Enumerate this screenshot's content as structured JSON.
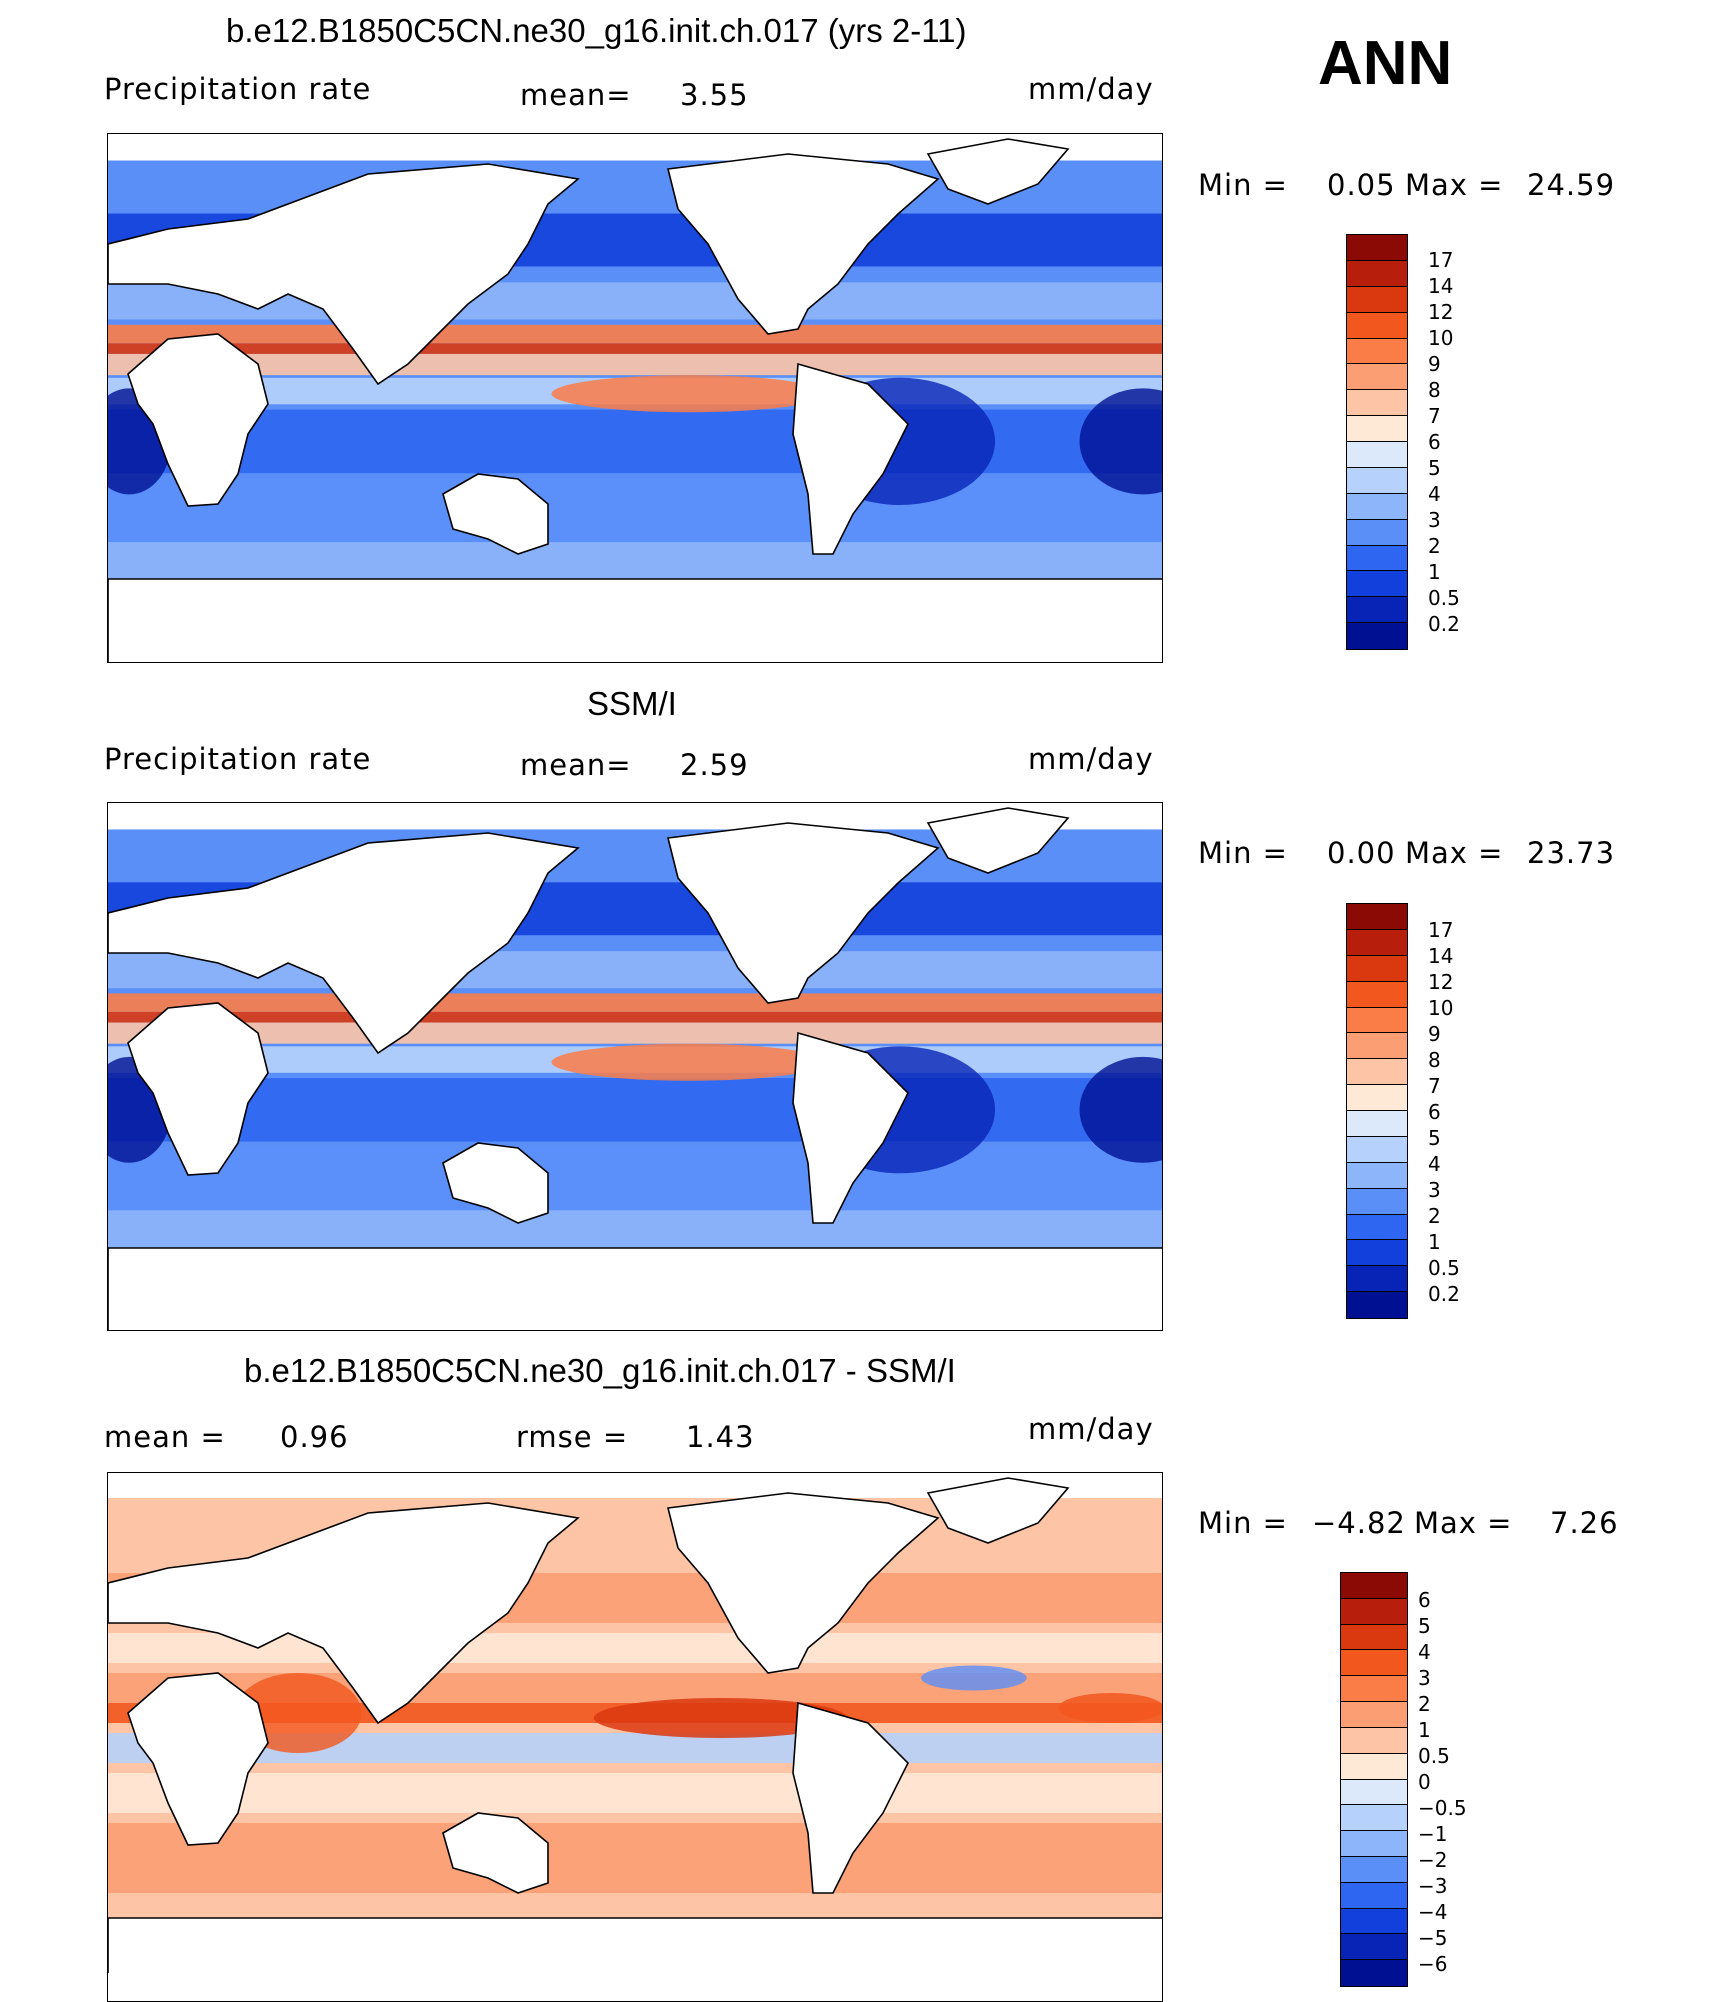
{
  "season": "ANN",
  "panels": [
    {
      "title": "b.e12.B1850C5CN.ne30_g16.init.ch.017 (yrs 2-11)",
      "left_label": "Precipitation rate",
      "mean_label": "mean=",
      "mean_value": "3.55",
      "units": "mm/day",
      "min_label": "Min =",
      "min_value": "0.05",
      "max_label": "Max =",
      "max_value": "24.59",
      "colorbar_labels": [
        "17",
        "14",
        "12",
        "10",
        "9",
        "8",
        "7",
        "6",
        "5",
        "4",
        "3",
        "2",
        "1",
        "0.5",
        "0.2"
      ],
      "colors": [
        "#8c0a05",
        "#b81e0c",
        "#da380f",
        "#f2571e",
        "#fa7d48",
        "#fb9e74",
        "#fdc4a5",
        "#fee8d6",
        "#dbe9fb",
        "#b6d1fb",
        "#8db5fa",
        "#5b8ff8",
        "#2f66f1",
        "#1240dc",
        "#0724b6",
        "#001093"
      ]
    },
    {
      "title": "SSM/I",
      "left_label": "Precipitation rate",
      "mean_label": "mean=",
      "mean_value": "2.59",
      "units": "mm/day",
      "min_label": "Min =",
      "min_value": "0.00",
      "max_label": "Max =",
      "max_value": "23.73",
      "colorbar_labels": [
        "17",
        "14",
        "12",
        "10",
        "9",
        "8",
        "7",
        "6",
        "5",
        "4",
        "3",
        "2",
        "1",
        "0.5",
        "0.2"
      ],
      "colors": [
        "#8c0a05",
        "#b81e0c",
        "#da380f",
        "#f2571e",
        "#fa7d48",
        "#fb9e74",
        "#fdc4a5",
        "#fee8d6",
        "#dbe9fb",
        "#b6d1fb",
        "#8db5fa",
        "#5b8ff8",
        "#2f66f1",
        "#1240dc",
        "#0724b6",
        "#001093"
      ]
    },
    {
      "title": "b.e12.B1850C5CN.ne30_g16.init.ch.017 - SSM/I",
      "mean_label": "mean =",
      "mean_value": "0.96",
      "rmse_label": "rmse =",
      "rmse_value": "1.43",
      "units": "mm/day",
      "min_label": "Min =",
      "min_value": "−4.82",
      "max_label": "Max =",
      "max_value": "7.26",
      "colorbar_labels": [
        "6",
        "5",
        "4",
        "3",
        "2",
        "1",
        "0.5",
        "0",
        "−0.5",
        "−1",
        "−2",
        "−3",
        "−4",
        "−5",
        "−6"
      ],
      "colors": [
        "#8c0a05",
        "#b81e0c",
        "#da380f",
        "#f2571e",
        "#fa7d48",
        "#fb9e74",
        "#fdc4a5",
        "#fee8d6",
        "#dbe9fb",
        "#b6d1fb",
        "#8db5fa",
        "#5b8ff8",
        "#2f66f1",
        "#1240dc",
        "#0724b6",
        "#001093"
      ]
    }
  ]
}
